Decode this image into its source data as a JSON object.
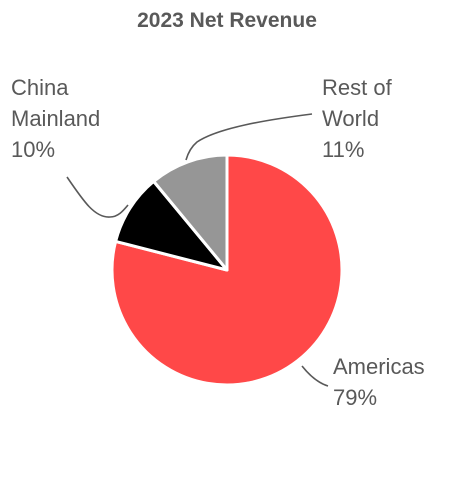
{
  "chart_data": {
    "type": "pie",
    "title": "2023 Net Revenue",
    "slices": [
      {
        "name": "Americas",
        "value": 79,
        "label": "79%",
        "color": "#ff4848"
      },
      {
        "name": "China Mainland",
        "name_lines": [
          "China",
          "Mainland"
        ],
        "value": 10,
        "label": "10%",
        "color": "#000000"
      },
      {
        "name": "Rest of World",
        "name_lines": [
          "Rest of",
          "World"
        ],
        "value": 11,
        "label": "11%",
        "color": "#969696"
      }
    ]
  }
}
